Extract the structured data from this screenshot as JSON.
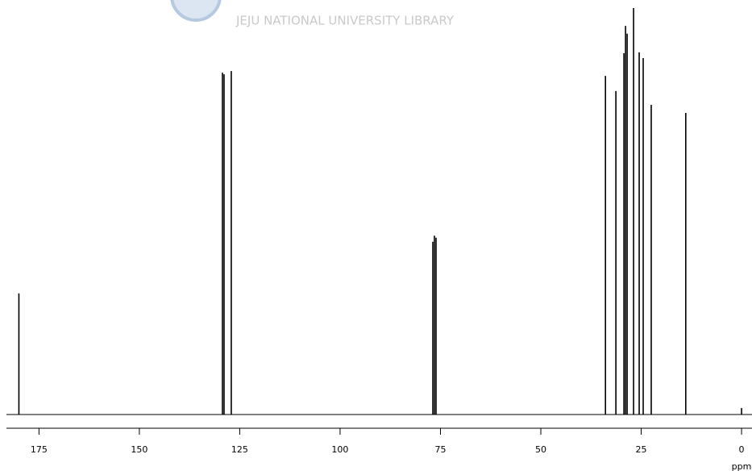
{
  "watermark": "JEJU NATIONAL UNIVERSITY LIBRARY",
  "chart_data": {
    "type": "spectrum",
    "x_label": "ppm",
    "x": [
      180.0,
      129.3,
      128.9,
      127.1,
      76.9,
      76.5,
      76.1,
      33.9,
      31.3,
      29.3,
      28.9,
      28.5,
      26.9,
      25.5,
      24.5,
      22.5,
      13.9,
      0.0
    ],
    "values": [
      29.8,
      84.1,
      83.7,
      84.5,
      42.5,
      44.0,
      43.5,
      83.3,
      79.6,
      88.9,
      95.6,
      93.7,
      100,
      89.1,
      87.7,
      76.2,
      74.2,
      1.6
    ],
    "color": "#000000",
    "xlim": [
      183.1,
      -2.6
    ],
    "xticks": [
      175,
      150,
      125,
      100,
      75,
      50,
      25,
      0
    ],
    "ylim": [
      0,
      100
    ]
  }
}
